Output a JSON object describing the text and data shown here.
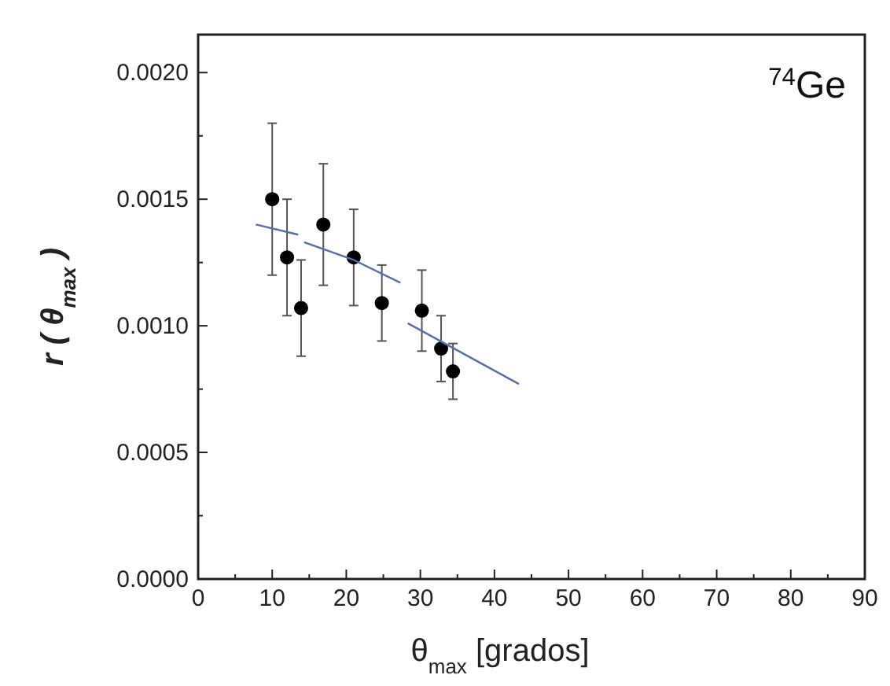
{
  "chart_data": {
    "type": "scatter",
    "xlabel": "θ$_{max}$ [grados]",
    "ylabel": "r ( θ$_{max}$ )",
    "annotations": [
      "$^{74}$Ge"
    ],
    "xlim": [
      0,
      90
    ],
    "ylim": [
      0,
      0.00215
    ],
    "xticks": [
      0,
      {
        "value": 5,
        "label": null
      },
      10,
      {
        "value": 15,
        "label": null
      },
      20,
      {
        "value": 25,
        "label": null
      },
      30,
      {
        "value": 35,
        "label": null
      },
      40,
      {
        "value": 45,
        "label": null
      },
      50,
      {
        "value": 55,
        "label": null
      },
      60,
      {
        "value": 65,
        "label": null
      },
      70,
      {
        "value": 75,
        "label": null
      },
      80,
      {
        "value": 85,
        "label": null
      },
      90
    ],
    "yticks": [
      {
        "value": 0,
        "label": "0.0000"
      },
      {
        "value": 0.00025,
        "label": null
      },
      {
        "value": 0.0005,
        "label": "0.0005"
      },
      {
        "value": 0.00075,
        "label": null
      },
      {
        "value": 0.001,
        "label": "0.0010"
      },
      {
        "value": 0.00125,
        "label": null
      },
      {
        "value": 0.0015,
        "label": "0.0015"
      },
      {
        "value": 0.00175,
        "label": null
      },
      {
        "value": 0.002,
        "label": "0.0020"
      }
    ],
    "grid": false,
    "series": [
      {
        "color": "#000000",
        "marker": "circle",
        "x": [
          10,
          12,
          13.9,
          16.9,
          21,
          24.8,
          30.2,
          32.8,
          34.4
        ],
        "values": [
          0.0015,
          0.00127,
          0.00107,
          0.0014,
          0.00127,
          0.00109,
          0.00106,
          0.00091,
          0.00082
        ],
        "errors": [
          0.0003,
          0.00023,
          0.00019,
          0.00024,
          0.00019,
          0.00015,
          0.00016,
          0.00013,
          0.00011
        ]
      },
      {
        "type": "line",
        "color": "#5a6fa8",
        "marker": "none",
        "x": [
          7.8,
          13.5
        ],
        "values": [
          0.0014,
          0.00136
        ]
      },
      {
        "type": "line",
        "color": "#5a6fa8",
        "marker": "none",
        "x": [
          14.3,
          21,
          27.3
        ],
        "values": [
          0.00133,
          0.00126,
          0.00117
        ]
      },
      {
        "type": "line",
        "color": "#5a6fa8",
        "marker": "none",
        "x": [
          28.3,
          43.3
        ],
        "values": [
          0.00101,
          0.00077
        ]
      }
    ]
  }
}
